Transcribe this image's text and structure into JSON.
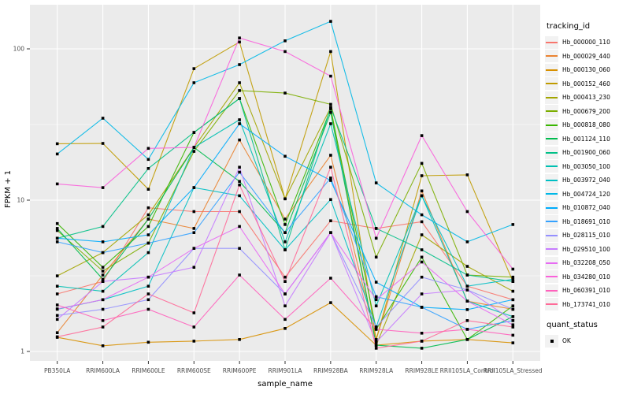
{
  "chart_data": {
    "type": "line",
    "title": "",
    "xlabel": "sample_name",
    "ylabel": "FPKM + 1",
    "y_scale": "log10",
    "y_ticks": [
      1,
      10,
      100
    ],
    "y_minor_ticks": [
      3.1623,
      31.623
    ],
    "ylim_log": [
      0.94,
      2.35
    ],
    "grid": "on",
    "panel_bg": "#ebebeb",
    "grid_color": "#ffffff",
    "tick_text_color": "#4d4d4d",
    "point_color": "#000000",
    "legend_position": "right",
    "legend_key_bg": "#f2f2f2",
    "legend_title": "tracking_id",
    "legend2_title": "quant_status",
    "legend2_entries": [
      {
        "label": "OK",
        "marker": "black-square"
      }
    ],
    "categories": [
      "PB350LA",
      "RRIM600LA",
      "RRIM600LE",
      "RRIM600SE",
      "RRIM600PE",
      "RRIM901LA",
      "RRIM928BA",
      "RRIM928LA",
      "RRIM928LE",
      "RRII105LA_Control",
      "RRII105LA_Stressed"
    ],
    "series": [
      {
        "name": "Hb_000000_110",
        "color": "#F8766D",
        "values": [
          2.4,
          2.9,
          8.9,
          8.4,
          8.4,
          3.1,
          7.3,
          6.5,
          7.2,
          2.7,
          2.2
        ]
      },
      {
        "name": "Hb_000029_440",
        "color": "#EA8331",
        "values": [
          1.33,
          3.2,
          7.5,
          6.5,
          25.0,
          7.5,
          19.8,
          1.2,
          11.5,
          2.15,
          1.9
        ]
      },
      {
        "name": "Hb_000130_060",
        "color": "#D89000",
        "values": [
          1.24,
          1.09,
          1.15,
          1.17,
          1.2,
          1.42,
          2.1,
          1.1,
          1.17,
          1.2,
          1.14
        ]
      },
      {
        "name": "Hb_000152_460",
        "color": "#C09B00",
        "values": [
          23.6,
          23.7,
          11.8,
          74.0,
          111.0,
          10.2,
          96.0,
          1.2,
          14.5,
          14.7,
          2.9
        ]
      },
      {
        "name": "Hb_000413_230",
        "color": "#A3A500",
        "values": [
          3.16,
          4.5,
          8.0,
          22.3,
          59.7,
          10.2,
          41.0,
          1.1,
          5.9,
          3.65,
          2.5
        ]
      },
      {
        "name": "Hb_000679_200",
        "color": "#7CAE00",
        "values": [
          6.3,
          3.4,
          5.2,
          21.0,
          53.0,
          51.0,
          43.0,
          4.2,
          17.5,
          3.2,
          3.1
        ]
      },
      {
        "name": "Hb_000818_080",
        "color": "#39B600",
        "values": [
          7.0,
          3.6,
          6.7,
          28.0,
          47.0,
          6.9,
          40.0,
          1.4,
          4.2,
          1.2,
          2.0
        ]
      },
      {
        "name": "Hb_001124_110",
        "color": "#00BB4E",
        "values": [
          6.5,
          3.0,
          7.5,
          22.3,
          13.3,
          6.1,
          38.0,
          1.1,
          1.05,
          1.2,
          1.7
        ]
      },
      {
        "name": "Hb_001900_060",
        "color": "#00C087",
        "values": [
          5.6,
          6.7,
          16.2,
          28.0,
          47.0,
          4.7,
          41.0,
          6.5,
          4.7,
          3.2,
          2.9
        ]
      },
      {
        "name": "Hb_003050_100",
        "color": "#00C0B2",
        "values": [
          2.7,
          2.5,
          4.5,
          22.3,
          34.0,
          5.3,
          32.0,
          2.0,
          10.7,
          2.15,
          1.7
        ]
      },
      {
        "name": "Hb_003972_040",
        "color": "#00BFC4",
        "values": [
          1.9,
          2.2,
          2.7,
          12.1,
          10.7,
          4.7,
          10.1,
          1.45,
          10.7,
          2.7,
          3.0
        ]
      },
      {
        "name": "Hb_004724_120",
        "color": "#00B8E7",
        "values": [
          20.2,
          34.8,
          18.6,
          59.7,
          78.7,
          113.0,
          152.0,
          13.0,
          8.0,
          5.3,
          6.9
        ]
      },
      {
        "name": "Hb_010872_040",
        "color": "#00ACFC",
        "values": [
          5.6,
          5.3,
          5.9,
          12.1,
          32.0,
          19.5,
          13.5,
          2.87,
          1.96,
          1.89,
          2.2
        ]
      },
      {
        "name": "Hb_018691_010",
        "color": "#35A2FF",
        "values": [
          5.3,
          4.5,
          5.2,
          6.1,
          15.3,
          6.1,
          14.0,
          2.3,
          1.96,
          1.4,
          1.6
        ]
      },
      {
        "name": "Hb_028115_010",
        "color": "#9590FF",
        "values": [
          1.73,
          1.9,
          2.2,
          4.8,
          4.8,
          2.4,
          6.1,
          1.45,
          3.1,
          2.55,
          1.9
        ]
      },
      {
        "name": "Hb_029510_100",
        "color": "#C77CFF",
        "values": [
          1.63,
          2.9,
          3.1,
          3.6,
          16.5,
          2.0,
          6.1,
          1.15,
          2.4,
          2.55,
          1.6
        ]
      },
      {
        "name": "Hb_032208_050",
        "color": "#E76BF3",
        "values": [
          1.91,
          2.2,
          3.1,
          4.8,
          6.7,
          2.4,
          6.1,
          2.2,
          3.9,
          2.15,
          1.5
        ]
      },
      {
        "name": "Hb_034280_010",
        "color": "#FA62DB",
        "values": [
          12.8,
          12.1,
          22.0,
          22.3,
          118.0,
          96.0,
          66.0,
          5.6,
          26.7,
          8.4,
          3.5
        ]
      },
      {
        "name": "Hb_060391_010",
        "color": "#FF62BC",
        "values": [
          2.03,
          1.6,
          1.9,
          1.45,
          3.2,
          1.63,
          3.05,
          1.4,
          1.32,
          1.4,
          1.28
        ]
      },
      {
        "name": "Hb_173741_010",
        "color": "#FF6A98",
        "values": [
          1.25,
          1.45,
          2.4,
          1.8,
          12.6,
          2.9,
          16.5,
          1.05,
          1.17,
          1.6,
          1.45
        ]
      }
    ]
  }
}
